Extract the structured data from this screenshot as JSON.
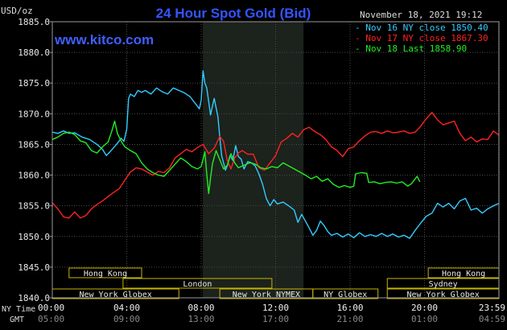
{
  "chart_data": {
    "type": "line",
    "title": "24 Hour Spot Gold (Bid)",
    "watermark": "www.kitco.com",
    "unit_label": "USD/oz",
    "timestamp": "November 18, 2021 19:12",
    "xlabel_primary": "NY Time",
    "xlabel_secondary": "GMT",
    "ylim": [
      1840,
      1885
    ],
    "y_ticks": [
      {
        "v": 1885,
        "label": "1885.0"
      },
      {
        "v": 1880,
        "label": "1880.0"
      },
      {
        "v": 1875,
        "label": "1875.0"
      },
      {
        "v": 1870,
        "label": "1870.0"
      },
      {
        "v": 1865,
        "label": "1865.0"
      },
      {
        "v": 1860,
        "label": "1860.0"
      },
      {
        "v": 1855,
        "label": "1855.0"
      },
      {
        "v": 1850,
        "label": "1850.0"
      },
      {
        "v": 1845,
        "label": "1845.0"
      },
      {
        "v": 1840,
        "label": "1840.0"
      }
    ],
    "xlim": [
      0,
      24
    ],
    "x_ticks": [
      {
        "h": 0,
        "ny": "00:00",
        "gmt": "05:00"
      },
      {
        "h": 4,
        "ny": "04:00",
        "gmt": "09:00"
      },
      {
        "h": 8,
        "ny": "08:00",
        "gmt": "13:00"
      },
      {
        "h": 12,
        "ny": "12:00",
        "gmt": "17:00"
      },
      {
        "h": 16,
        "ny": "16:00",
        "gmt": "21:00"
      },
      {
        "h": 20,
        "ny": "20:00",
        "gmt": "01:00"
      },
      {
        "h": 23.98,
        "ny": "23:59",
        "gmt": "04:59"
      }
    ],
    "highlight_range": [
      8.08,
      13.5
    ],
    "markets": [
      {
        "name": "Hong Kong",
        "start": 0.9,
        "end": 4.8,
        "row": 0
      },
      {
        "name": "London",
        "start": 3.8,
        "end": 11.8,
        "row": 1
      },
      {
        "name": "New York Globex",
        "start": 0.0,
        "end": 6.8,
        "row": 2
      },
      {
        "name": "New York NYMEX",
        "start": 9.0,
        "end": 14.0,
        "row": 2
      },
      {
        "name": "NY Globex",
        "start": 14.0,
        "end": 17.5,
        "row": 2
      },
      {
        "name": "Hong Kong",
        "start": 20.2,
        "end": 24.0,
        "row": 0
      },
      {
        "name": "Sydney",
        "start": 18.0,
        "end": 24.0,
        "row": 1
      },
      {
        "name": "New York Globex",
        "start": 18.0,
        "end": 24.0,
        "row": 2
      }
    ],
    "series": [
      {
        "name": "Nov 16 NY close 1850.40",
        "color": "#33ccff",
        "points": [
          [
            0,
            1867
          ],
          [
            0.3,
            1866.8
          ],
          [
            0.6,
            1867.2
          ],
          [
            0.9,
            1866.8
          ],
          [
            1.2,
            1866.9
          ],
          [
            1.6,
            1866.2
          ],
          [
            2.0,
            1865.8
          ],
          [
            2.4,
            1865.0
          ],
          [
            2.7,
            1864.2
          ],
          [
            2.9,
            1863.2
          ],
          [
            3.1,
            1863.8
          ],
          [
            3.3,
            1864.5
          ],
          [
            3.5,
            1865.2
          ],
          [
            3.7,
            1866.0
          ],
          [
            3.85,
            1865.5
          ],
          [
            4.0,
            1867.5
          ],
          [
            4.1,
            1872.5
          ],
          [
            4.2,
            1873.2
          ],
          [
            4.4,
            1872.8
          ],
          [
            4.6,
            1873.8
          ],
          [
            4.8,
            1873.5
          ],
          [
            5.0,
            1873.8
          ],
          [
            5.3,
            1873.2
          ],
          [
            5.6,
            1874.2
          ],
          [
            5.9,
            1873.6
          ],
          [
            6.2,
            1873.2
          ],
          [
            6.5,
            1874.2
          ],
          [
            6.8,
            1873.8
          ],
          [
            7.1,
            1873.4
          ],
          [
            7.4,
            1872.8
          ],
          [
            7.7,
            1871.6
          ],
          [
            7.9,
            1870.8
          ],
          [
            8.0,
            1872.2
          ],
          [
            8.1,
            1877.0
          ],
          [
            8.2,
            1875.0
          ],
          [
            8.3,
            1874.2
          ],
          [
            8.4,
            1872.0
          ],
          [
            8.5,
            1869.8
          ],
          [
            8.6,
            1871.2
          ],
          [
            8.7,
            1872.5
          ],
          [
            8.8,
            1871.0
          ],
          [
            8.9,
            1869.5
          ],
          [
            9.0,
            1866.2
          ],
          [
            9.1,
            1863.2
          ],
          [
            9.2,
            1862.0
          ],
          [
            9.3,
            1860.8
          ],
          [
            9.4,
            1861.5
          ],
          [
            9.55,
            1863.2
          ],
          [
            9.7,
            1862.4
          ],
          [
            9.85,
            1864.8
          ],
          [
            10.0,
            1863.0
          ],
          [
            10.15,
            1862.6
          ],
          [
            10.3,
            1861.0
          ],
          [
            10.5,
            1862.2
          ],
          [
            10.7,
            1862.0
          ],
          [
            10.9,
            1861.5
          ],
          [
            11.1,
            1860.2
          ],
          [
            11.3,
            1858.5
          ],
          [
            11.5,
            1856.2
          ],
          [
            11.7,
            1855.0
          ],
          [
            11.9,
            1856.0
          ],
          [
            12.1,
            1855.3
          ],
          [
            12.4,
            1855.6
          ],
          [
            12.7,
            1855.0
          ],
          [
            13.0,
            1854.3
          ],
          [
            13.2,
            1852.3
          ],
          [
            13.4,
            1853.6
          ],
          [
            13.6,
            1852.5
          ],
          [
            13.8,
            1851.4
          ],
          [
            14.0,
            1850.2
          ],
          [
            14.2,
            1851.0
          ],
          [
            14.4,
            1852.5
          ],
          [
            14.6,
            1851.8
          ],
          [
            14.8,
            1850.8
          ],
          [
            15.0,
            1850.2
          ],
          [
            15.3,
            1850.5
          ],
          [
            15.6,
            1849.9
          ],
          [
            15.9,
            1850.4
          ],
          [
            16.2,
            1849.8
          ],
          [
            16.5,
            1850.6
          ],
          [
            16.8,
            1850.0
          ],
          [
            17.1,
            1850.3
          ],
          [
            17.4,
            1850.0
          ],
          [
            17.7,
            1850.5
          ],
          [
            18.0,
            1850.0
          ],
          [
            18.3,
            1850.4
          ],
          [
            18.6,
            1849.9
          ],
          [
            18.9,
            1850.2
          ],
          [
            19.2,
            1849.7
          ],
          [
            19.5,
            1851.0
          ],
          [
            19.8,
            1852.2
          ],
          [
            20.1,
            1853.3
          ],
          [
            20.4,
            1853.8
          ],
          [
            20.7,
            1855.4
          ],
          [
            21.0,
            1854.8
          ],
          [
            21.3,
            1855.4
          ],
          [
            21.6,
            1854.5
          ],
          [
            21.9,
            1855.8
          ],
          [
            22.2,
            1856.2
          ],
          [
            22.5,
            1854.3
          ],
          [
            22.8,
            1854.6
          ],
          [
            23.1,
            1853.8
          ],
          [
            23.4,
            1854.5
          ],
          [
            23.7,
            1855.0
          ],
          [
            24.0,
            1855.4
          ]
        ]
      },
      {
        "name": "Nov 17 NY close 1867.30",
        "color": "#ff2222",
        "points": [
          [
            0,
            1855.5
          ],
          [
            0.3,
            1854.5
          ],
          [
            0.6,
            1853.2
          ],
          [
            0.9,
            1853.0
          ],
          [
            1.2,
            1854.0
          ],
          [
            1.5,
            1853.0
          ],
          [
            1.8,
            1853.4
          ],
          [
            2.1,
            1854.5
          ],
          [
            2.4,
            1855.2
          ],
          [
            2.7,
            1855.8
          ],
          [
            3.0,
            1856.5
          ],
          [
            3.3,
            1857.2
          ],
          [
            3.6,
            1857.8
          ],
          [
            3.9,
            1859.2
          ],
          [
            4.2,
            1860.5
          ],
          [
            4.5,
            1861.2
          ],
          [
            4.8,
            1861.0
          ],
          [
            5.1,
            1860.5
          ],
          [
            5.4,
            1860.0
          ],
          [
            5.7,
            1860.6
          ],
          [
            6.0,
            1860.4
          ],
          [
            6.3,
            1861.2
          ],
          [
            6.6,
            1862.8
          ],
          [
            6.9,
            1863.5
          ],
          [
            7.2,
            1864.2
          ],
          [
            7.5,
            1863.8
          ],
          [
            7.8,
            1864.5
          ],
          [
            8.1,
            1865.0
          ],
          [
            8.4,
            1863.5
          ],
          [
            8.7,
            1864.4
          ],
          [
            9.0,
            1866.3
          ],
          [
            9.2,
            1865.5
          ],
          [
            9.4,
            1862.4
          ],
          [
            9.6,
            1861.0
          ],
          [
            9.8,
            1862.8
          ],
          [
            10.0,
            1863.6
          ],
          [
            10.2,
            1864.0
          ],
          [
            10.5,
            1863.4
          ],
          [
            10.8,
            1863.4
          ],
          [
            11.1,
            1861.2
          ],
          [
            11.4,
            1860.8
          ],
          [
            11.7,
            1862.0
          ],
          [
            12.0,
            1863.2
          ],
          [
            12.3,
            1865.4
          ],
          [
            12.6,
            1866.0
          ],
          [
            12.9,
            1866.8
          ],
          [
            13.2,
            1866.2
          ],
          [
            13.5,
            1867.4
          ],
          [
            13.8,
            1867.8
          ],
          [
            14.1,
            1867.1
          ],
          [
            14.4,
            1866.6
          ],
          [
            14.7,
            1865.8
          ],
          [
            15.0,
            1864.6
          ],
          [
            15.3,
            1864.0
          ],
          [
            15.6,
            1863.0
          ],
          [
            15.9,
            1864.3
          ],
          [
            16.2,
            1864.6
          ],
          [
            16.5,
            1865.6
          ],
          [
            16.8,
            1866.4
          ],
          [
            17.1,
            1867.0
          ],
          [
            17.4,
            1867.1
          ],
          [
            17.7,
            1866.8
          ],
          [
            18.0,
            1867.2
          ],
          [
            18.3,
            1866.9
          ],
          [
            18.6,
            1867.0
          ],
          [
            18.9,
            1867.2
          ],
          [
            19.2,
            1866.8
          ],
          [
            19.5,
            1867.0
          ],
          [
            19.8,
            1868.0
          ],
          [
            20.1,
            1869.2
          ],
          [
            20.4,
            1870.2
          ],
          [
            20.7,
            1869.0
          ],
          [
            21.0,
            1868.2
          ],
          [
            21.3,
            1868.5
          ],
          [
            21.6,
            1868.8
          ],
          [
            21.9,
            1866.8
          ],
          [
            22.2,
            1865.6
          ],
          [
            22.5,
            1866.2
          ],
          [
            22.8,
            1865.4
          ],
          [
            23.1,
            1865.9
          ],
          [
            23.4,
            1865.8
          ],
          [
            23.7,
            1867.2
          ],
          [
            24.0,
            1866.5
          ]
        ]
      },
      {
        "name": "Nov 18 Last 1858.90",
        "color": "#22ee22",
        "points": [
          [
            0,
            1865.8
          ],
          [
            0.3,
            1866.2
          ],
          [
            0.6,
            1866.8
          ],
          [
            0.9,
            1867.0
          ],
          [
            1.2,
            1866.6
          ],
          [
            1.5,
            1865.6
          ],
          [
            1.8,
            1865.3
          ],
          [
            2.1,
            1864.0
          ],
          [
            2.4,
            1863.6
          ],
          [
            2.7,
            1864.6
          ],
          [
            3.0,
            1865.4
          ],
          [
            3.2,
            1867.2
          ],
          [
            3.35,
            1868.8
          ],
          [
            3.5,
            1866.8
          ],
          [
            3.7,
            1865.5
          ],
          [
            3.9,
            1864.6
          ],
          [
            4.2,
            1864.0
          ],
          [
            4.5,
            1863.5
          ],
          [
            4.8,
            1862.0
          ],
          [
            5.1,
            1861.0
          ],
          [
            5.4,
            1860.4
          ],
          [
            5.7,
            1860.0
          ],
          [
            6.0,
            1859.8
          ],
          [
            6.3,
            1860.8
          ],
          [
            6.6,
            1861.8
          ],
          [
            6.9,
            1862.8
          ],
          [
            7.2,
            1862.2
          ],
          [
            7.5,
            1861.4
          ],
          [
            7.8,
            1861.0
          ],
          [
            8.0,
            1861.4
          ],
          [
            8.2,
            1863.8
          ],
          [
            8.3,
            1860.2
          ],
          [
            8.4,
            1857.0
          ],
          [
            8.5,
            1859.5
          ],
          [
            8.6,
            1861.8
          ],
          [
            8.8,
            1864.0
          ],
          [
            9.0,
            1862.5
          ],
          [
            9.2,
            1861.0
          ],
          [
            9.4,
            1861.6
          ],
          [
            9.6,
            1863.5
          ],
          [
            9.8,
            1862.0
          ],
          [
            10.0,
            1861.2
          ],
          [
            10.3,
            1861.6
          ],
          [
            10.6,
            1862.0
          ],
          [
            10.9,
            1861.8
          ],
          [
            11.2,
            1861.2
          ],
          [
            11.5,
            1861.0
          ],
          [
            11.8,
            1861.4
          ],
          [
            12.1,
            1861.2
          ],
          [
            12.4,
            1862.0
          ],
          [
            12.7,
            1861.5
          ],
          [
            13.0,
            1861.0
          ],
          [
            13.3,
            1860.5
          ],
          [
            13.6,
            1860.0
          ],
          [
            13.9,
            1859.4
          ],
          [
            14.2,
            1859.8
          ],
          [
            14.5,
            1859.0
          ],
          [
            14.8,
            1859.4
          ],
          [
            15.1,
            1858.5
          ],
          [
            15.4,
            1858.0
          ],
          [
            15.7,
            1858.3
          ],
          [
            16.0,
            1858.0
          ],
          [
            16.2,
            1858.2
          ],
          [
            16.3,
            1860.2
          ],
          [
            16.6,
            1860.4
          ],
          [
            16.9,
            1860.3
          ],
          [
            17.0,
            1858.8
          ],
          [
            17.3,
            1858.9
          ],
          [
            17.6,
            1858.6
          ],
          [
            17.9,
            1858.8
          ],
          [
            18.2,
            1858.9
          ],
          [
            18.5,
            1858.7
          ],
          [
            18.8,
            1858.9
          ],
          [
            19.1,
            1858.2
          ],
          [
            19.3,
            1858.6
          ],
          [
            19.6,
            1859.8
          ],
          [
            19.75,
            1858.9
          ]
        ]
      }
    ]
  }
}
